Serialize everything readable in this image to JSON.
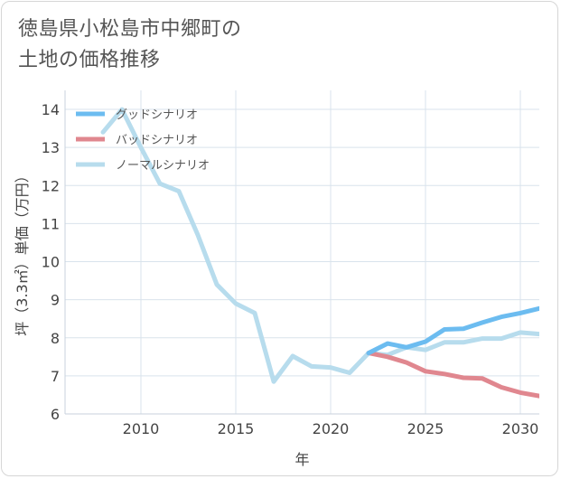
{
  "title_lines": [
    "徳島県小松島市中郷町の",
    "土地の価格推移"
  ],
  "chart_data": {
    "type": "line",
    "title": "徳島県小松島市中郷町の土地の価格推移",
    "xlabel": "年",
    "ylabel": "坪（3.3㎡）単価（万円）",
    "xlim": [
      2006,
      2031
    ],
    "ylim": [
      6,
      14.5
    ],
    "xticks": [
      2010,
      2015,
      2020,
      2025,
      2030
    ],
    "yticks": [
      6,
      7,
      8,
      9,
      10,
      11,
      12,
      13,
      14
    ],
    "grid": true,
    "legend_position": "top-left",
    "series": [
      {
        "name": "グッドシナリオ",
        "color": "#6cbcf0",
        "x": [
          2022,
          2023,
          2024,
          2025,
          2026,
          2027,
          2028,
          2029,
          2030,
          2031
        ],
        "y": [
          7.6,
          7.85,
          7.75,
          7.9,
          8.22,
          8.24,
          8.4,
          8.55,
          8.65,
          8.77
        ]
      },
      {
        "name": "バッドシナリオ",
        "color": "#e0878f",
        "x": [
          2022,
          2023,
          2024,
          2025,
          2026,
          2027,
          2028,
          2029,
          2030,
          2031
        ],
        "y": [
          7.6,
          7.5,
          7.35,
          7.12,
          7.05,
          6.95,
          6.93,
          6.7,
          6.56,
          6.47
        ]
      },
      {
        "name": "ノーマルシナリオ",
        "color": "#b7dced",
        "x": [
          2008,
          2009,
          2010,
          2011,
          2012,
          2013,
          2014,
          2015,
          2016,
          2017,
          2018,
          2019,
          2020,
          2021,
          2022,
          2023,
          2024,
          2025,
          2026,
          2027,
          2028,
          2029,
          2030,
          2031
        ],
        "y": [
          13.4,
          14.0,
          13.0,
          12.05,
          11.85,
          10.7,
          9.4,
          8.9,
          8.65,
          6.85,
          7.52,
          7.25,
          7.22,
          7.08,
          7.6,
          7.55,
          7.75,
          7.68,
          7.88,
          7.88,
          7.98,
          7.98,
          8.14,
          8.1
        ]
      }
    ]
  }
}
